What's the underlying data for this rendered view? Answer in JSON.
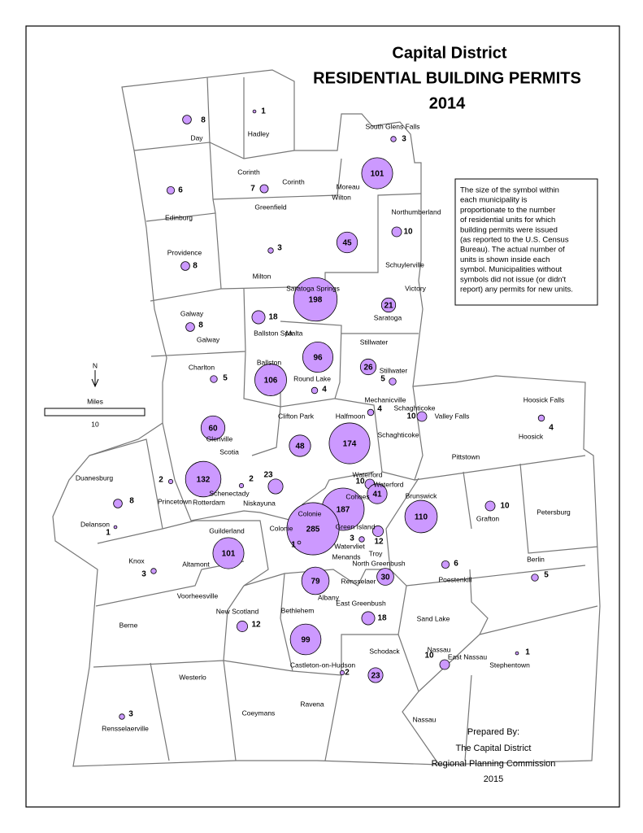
{
  "title": [
    "Capital District",
    "RESIDENTIAL BUILDING PERMITS",
    "2014"
  ],
  "note": [
    "The size of the symbol within",
    "each municipality is",
    "proportionate to the number",
    "of residential units for which",
    "building permits were issued",
    "(as reported to the U.S. Census",
    "Bureau). The actual number of",
    "units is shown inside each",
    "symbol. Municipalities without",
    "symbols did not issue (or didn't",
    "report) any permits for new units."
  ],
  "north": "N",
  "scale": {
    "label": "Miles",
    "value": 10
  },
  "credit": [
    "Prepared By:",
    "The Capital District",
    "Regional Planning Commission",
    "2015"
  ],
  "places": [
    {
      "name": "Day",
      "permits": 8
    },
    {
      "name": "Hadley",
      "permits": 1
    },
    {
      "name": "South Glens Falls",
      "permits": 3
    },
    {
      "name": "Moreau",
      "permits": 101
    },
    {
      "name": "Corinth",
      "permits": 7
    },
    {
      "name": "Corinth"
    },
    {
      "name": "Edinburg",
      "permits": 6
    },
    {
      "name": "Wilton",
      "permits": 45
    },
    {
      "name": "Northumberland",
      "permits": 10
    },
    {
      "name": "Greenfield",
      "permits": 3
    },
    {
      "name": "Providence",
      "permits": 8
    },
    {
      "name": "Schuylerville"
    },
    {
      "name": "Victory"
    },
    {
      "name": "Saratoga Springs",
      "permits": 198
    },
    {
      "name": "Milton",
      "permits": 18
    },
    {
      "name": "Saratoga",
      "permits": 21
    },
    {
      "name": "Galway",
      "permits": 8
    },
    {
      "name": "Galway"
    },
    {
      "name": "Ballston Spa"
    },
    {
      "name": "Malta",
      "permits": 96
    },
    {
      "name": "Stillwater",
      "permits": 26
    },
    {
      "name": "Stillwater",
      "permits": 5
    },
    {
      "name": "Charlton",
      "permits": 5
    },
    {
      "name": "Ballston",
      "permits": 106
    },
    {
      "name": "Round Lake",
      "permits": 4
    },
    {
      "name": "Mechanicville",
      "permits": 4
    },
    {
      "name": "Schaghticoke",
      "permits": 10
    },
    {
      "name": "Valley Falls"
    },
    {
      "name": "Hoosick Falls",
      "permits": 4
    },
    {
      "name": "Hoosick"
    },
    {
      "name": "Clifton Park",
      "permits": 48
    },
    {
      "name": "Halfmoon",
      "permits": 174
    },
    {
      "name": "Schaghticoke"
    },
    {
      "name": "Pittstown"
    },
    {
      "name": "Glenville",
      "permits": 60
    },
    {
      "name": "Scotia"
    },
    {
      "name": "Duanesburg",
      "permits": 8
    },
    {
      "name": "Princetown",
      "permits": 2
    },
    {
      "name": "Rotterdam",
      "permits": 132
    },
    {
      "name": "Schenectady",
      "permits": 2
    },
    {
      "name": "Niskayuna",
      "permits": 23
    },
    {
      "name": "Waterford",
      "permits": 10
    },
    {
      "name": "Waterford",
      "permits": 41
    },
    {
      "name": "Cohoes",
      "permits": 187
    },
    {
      "name": "Green Island",
      "permits": 3
    },
    {
      "name": "Colonie",
      "permits": 285
    },
    {
      "name": "Colonie",
      "permits": 1
    },
    {
      "name": "Brunswick",
      "permits": 110
    },
    {
      "name": "Grafton",
      "permits": 10
    },
    {
      "name": "Petersburg"
    },
    {
      "name": "Delanson",
      "permits": 1
    },
    {
      "name": "Guilderland",
      "permits": 101
    },
    {
      "name": "Altamont"
    },
    {
      "name": "Knox",
      "permits": 3
    },
    {
      "name": "Watervliet"
    },
    {
      "name": "Troy",
      "permits": 12
    },
    {
      "name": "Menands"
    },
    {
      "name": "North Greenbush",
      "permits": 30
    },
    {
      "name": "Poestenkill",
      "permits": 6
    },
    {
      "name": "Berlin",
      "permits": 5
    },
    {
      "name": "Rensselaer"
    },
    {
      "name": "Albany",
      "permits": 79
    },
    {
      "name": "Voorheesville"
    },
    {
      "name": "New Scotland",
      "permits": 12
    },
    {
      "name": "Bethlehem",
      "permits": 99
    },
    {
      "name": "East Greenbush",
      "permits": 18
    },
    {
      "name": "Berne"
    },
    {
      "name": "Sand Lake"
    },
    {
      "name": "Schodack",
      "permits": 23
    },
    {
      "name": "Castleton-on-Hudson",
      "permits": 2
    },
    {
      "name": "Nassau",
      "permits": 10
    },
    {
      "name": "East Nassau"
    },
    {
      "name": "Stephentown",
      "permits": 1
    },
    {
      "name": "Westerlo"
    },
    {
      "name": "Coeymans"
    },
    {
      "name": "Ravena"
    },
    {
      "name": "Nassau"
    },
    {
      "name": "Rensselaerville",
      "permits": 3
    }
  ]
}
